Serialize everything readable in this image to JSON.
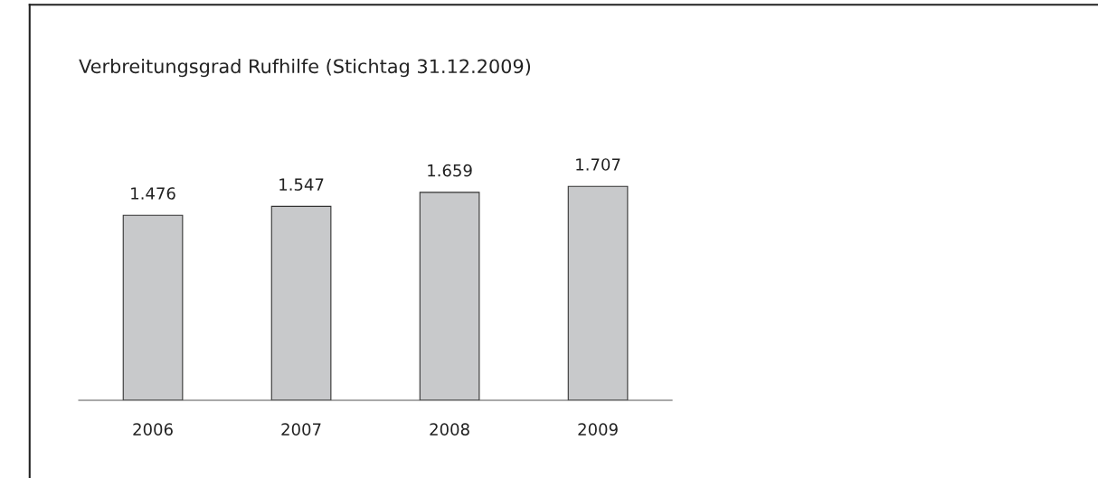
{
  "chart_data": {
    "type": "bar",
    "title": "Verbreitungsgrad Rufhilfe (Stichtag 31.12.2009)",
    "categories": [
      "2006",
      "2007",
      "2008",
      "2009"
    ],
    "values": [
      1476,
      1547,
      1659,
      1707
    ],
    "value_labels": [
      "1.476",
      "1.547",
      "1.659",
      "1.707"
    ],
    "color": "#c8c9cb",
    "tick_labels": "x",
    "grid": false,
    "legend": false
  }
}
